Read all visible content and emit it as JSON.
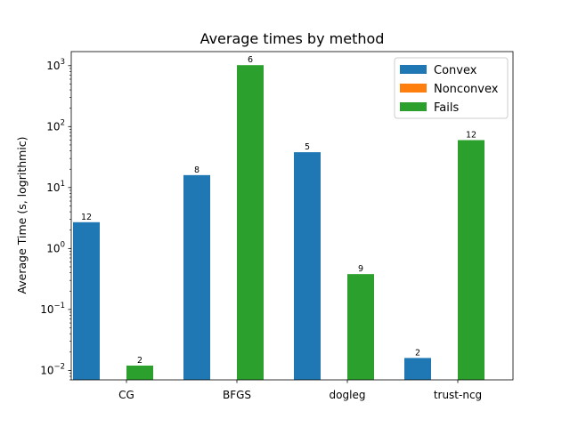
{
  "chart_data": {
    "type": "bar",
    "title": "Average times by method",
    "xlabel": "",
    "ylabel": "Average Time (s, logrithmic)",
    "yscale": "log",
    "ylim": [
      0.007,
      1700
    ],
    "categories": [
      "CG",
      "BFGS",
      "dogleg",
      "trust-ncg"
    ],
    "series": [
      {
        "name": "Convex",
        "color": "#1f77b4",
        "values": [
          2.7,
          16,
          38,
          0.016
        ],
        "labels": [
          "12",
          "8",
          "5",
          "2"
        ]
      },
      {
        "name": "Nonconvex",
        "color": "#ff7f0e",
        "values": [
          null,
          null,
          null,
          null
        ],
        "labels": [
          "",
          "",
          "",
          ""
        ]
      },
      {
        "name": "Fails",
        "color": "#2ca02c",
        "values": [
          0.012,
          1020,
          0.38,
          60
        ],
        "labels": [
          "2",
          "6",
          "9",
          "12"
        ]
      }
    ],
    "yticks": [
      {
        "base": "10",
        "exp": "−2",
        "value": 0.01
      },
      {
        "base": "10",
        "exp": "−1",
        "value": 0.1
      },
      {
        "base": "10",
        "exp": "0",
        "value": 1
      },
      {
        "base": "10",
        "exp": "1",
        "value": 10
      },
      {
        "base": "10",
        "exp": "2",
        "value": 100
      },
      {
        "base": "10",
        "exp": "3",
        "value": 1000
      }
    ],
    "legend": {
      "placement": "top-right"
    },
    "grid": false
  }
}
